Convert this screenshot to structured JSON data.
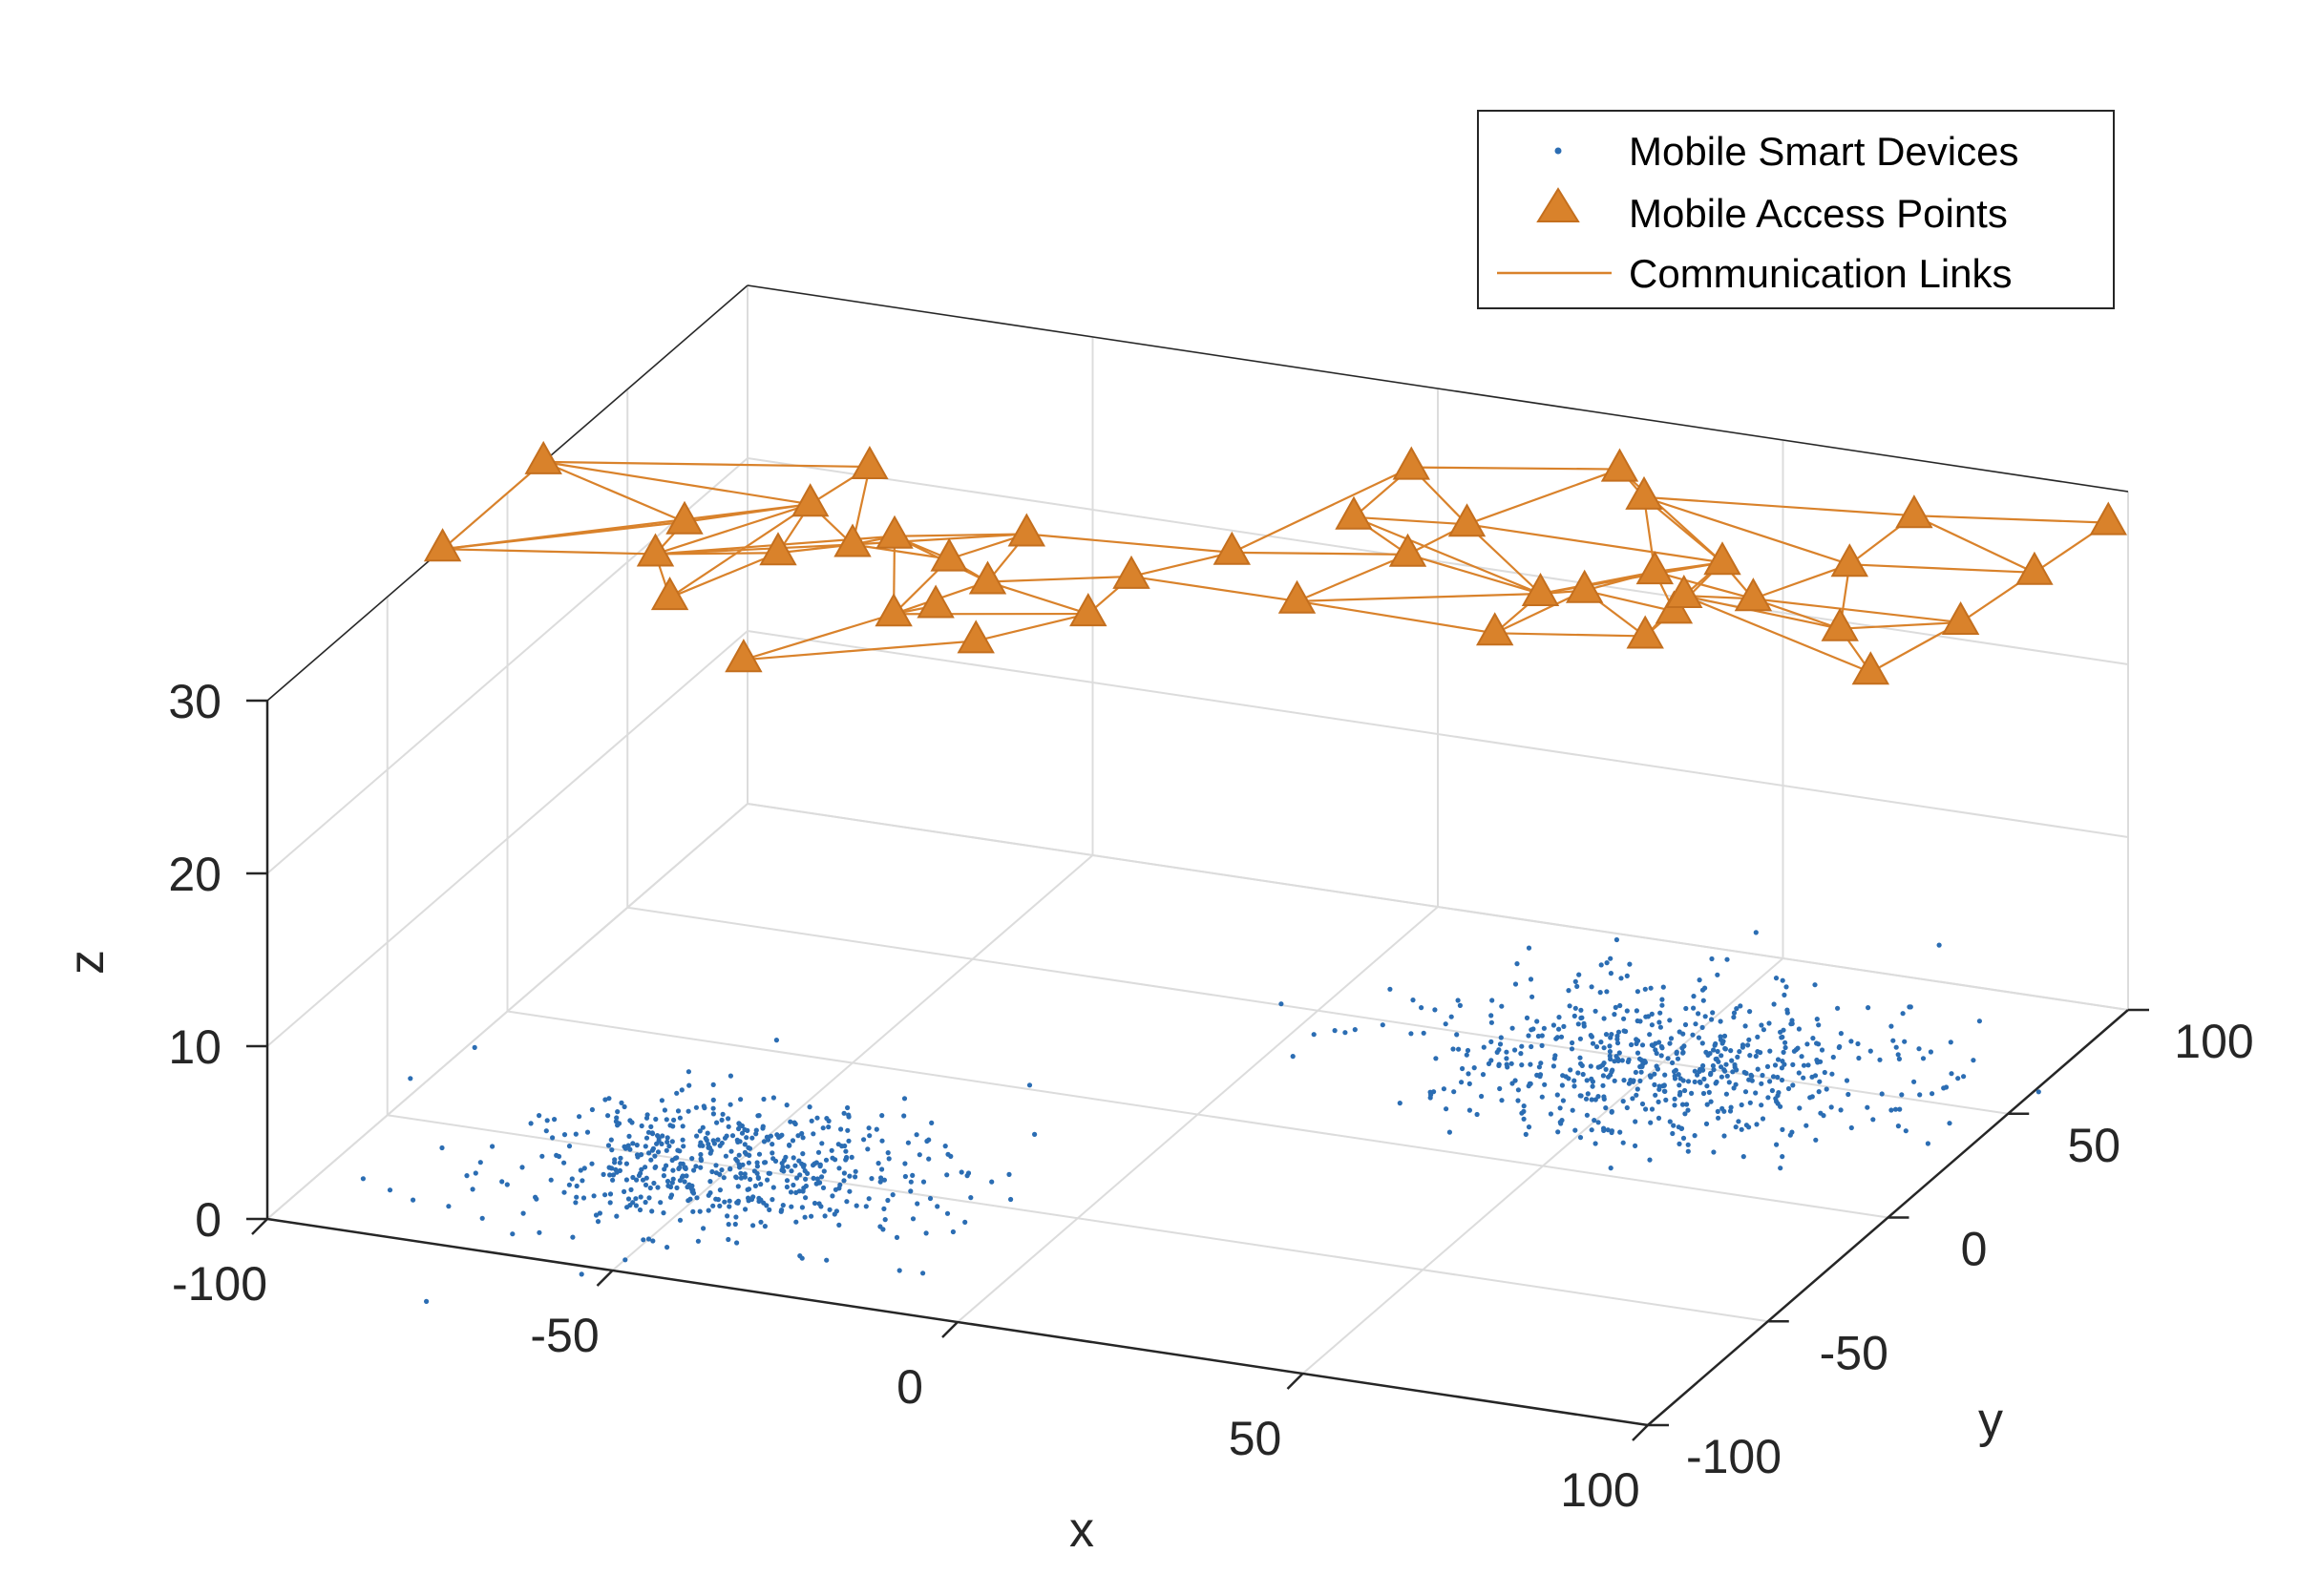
{
  "chart_data": {
    "type": "scatter3d",
    "xlabel": "x",
    "ylabel": "y",
    "zlabel": "z",
    "xlim": [
      -100,
      100
    ],
    "ylim": [
      -100,
      100
    ],
    "zlim": [
      0,
      30
    ],
    "xticks": [
      "-100",
      "-50",
      "0",
      "50",
      "100"
    ],
    "yticks": [
      "-100",
      "-50",
      "0",
      "50",
      "100"
    ],
    "zticks": [
      "0",
      "10",
      "20",
      "30"
    ],
    "grid": true,
    "legend": {
      "placement": "top-right",
      "entries": [
        "Mobile Smart Devices",
        "Mobile Access Points",
        "Communication Links"
      ]
    },
    "colors": {
      "devices": "#2b6db3",
      "access_points": "#d9822b",
      "links": "#d9822b",
      "grid": "#dcdcdc",
      "axis": "#262626"
    },
    "device_clusters": [
      {
        "center": [
          -50,
          -50,
          0
        ],
        "spread": 15,
        "count": 560
      },
      {
        "center": [
          50,
          50,
          0
        ],
        "spread": 17,
        "count": 620
      }
    ],
    "access_points": [
      [
        -100,
        -27,
        30
      ],
      [
        -74,
        -1,
        30
      ],
      [
        -59,
        33,
        30
      ],
      [
        -100,
        15,
        30
      ],
      [
        -61,
        14,
        30
      ],
      [
        -73,
        -16,
        30
      ],
      [
        -65,
        -33,
        30
      ],
      [
        -58,
        -8,
        30
      ],
      [
        -50,
        0,
        30
      ],
      [
        -46,
        6,
        30
      ],
      [
        -36,
        0,
        30
      ],
      [
        -30,
        15,
        30
      ],
      [
        -28,
        -7,
        30
      ],
      [
        -35,
        -26,
        30
      ],
      [
        -47,
        -54,
        30
      ],
      [
        -21,
        -32,
        30
      ],
      [
        -11,
        -14,
        30
      ],
      [
        -11,
        4,
        30
      ],
      [
        -2,
        20,
        30
      ],
      [
        20,
        30,
        30
      ],
      [
        13,
        4,
        30
      ],
      [
        -31,
        -20,
        30
      ],
      [
        8,
        66,
        30
      ],
      [
        23,
        46,
        30
      ],
      [
        42,
        22,
        30
      ],
      [
        34,
        78,
        30
      ],
      [
        60,
        46,
        30
      ],
      [
        41,
        68,
        30
      ],
      [
        53,
        38,
        30
      ],
      [
        47,
        26,
        30
      ],
      [
        42,
        3,
        30
      ],
      [
        61,
        11,
        30
      ],
      [
        61,
        23,
        30
      ],
      [
        69,
        33,
        30
      ],
      [
        60,
        30,
        30
      ],
      [
        77,
        77,
        30
      ],
      [
        76,
        53,
        30
      ],
      [
        84,
        26,
        30
      ],
      [
        98,
        36,
        30
      ],
      [
        94,
        10,
        30
      ],
      [
        100,
        61,
        30
      ],
      [
        102,
        86,
        30
      ],
      [
        8,
        42,
        30
      ]
    ],
    "links": [
      [
        0,
        1
      ],
      [
        0,
        4
      ],
      [
        0,
        3
      ],
      [
        0,
        5
      ],
      [
        3,
        4
      ],
      [
        3,
        2
      ],
      [
        3,
        1
      ],
      [
        2,
        4
      ],
      [
        2,
        8
      ],
      [
        1,
        5
      ],
      [
        1,
        4
      ],
      [
        4,
        8
      ],
      [
        4,
        5
      ],
      [
        4,
        7
      ],
      [
        4,
        6
      ],
      [
        5,
        8
      ],
      [
        5,
        6
      ],
      [
        5,
        7
      ],
      [
        5,
        9
      ],
      [
        7,
        8
      ],
      [
        7,
        6
      ],
      [
        8,
        9
      ],
      [
        8,
        10
      ],
      [
        8,
        11
      ],
      [
        9,
        10
      ],
      [
        9,
        11
      ],
      [
        9,
        12
      ],
      [
        9,
        13
      ],
      [
        10,
        11
      ],
      [
        10,
        12
      ],
      [
        10,
        13
      ],
      [
        11,
        12
      ],
      [
        11,
        18
      ],
      [
        12,
        13
      ],
      [
        12,
        16
      ],
      [
        12,
        17
      ],
      [
        13,
        21
      ],
      [
        13,
        16
      ],
      [
        13,
        14
      ],
      [
        14,
        15
      ],
      [
        15,
        16
      ],
      [
        16,
        17
      ],
      [
        17,
        18
      ],
      [
        17,
        20
      ],
      [
        18,
        19
      ],
      [
        18,
        22
      ],
      [
        19,
        20
      ],
      [
        19,
        23
      ],
      [
        19,
        24
      ],
      [
        20,
        24
      ],
      [
        20,
        30
      ],
      [
        22,
        23
      ],
      [
        22,
        25
      ],
      [
        22,
        42
      ],
      [
        23,
        25
      ],
      [
        23,
        24
      ],
      [
        23,
        26
      ],
      [
        23,
        42
      ],
      [
        24,
        29
      ],
      [
        24,
        30
      ],
      [
        24,
        28
      ],
      [
        24,
        26
      ],
      [
        25,
        27
      ],
      [
        25,
        26
      ],
      [
        26,
        27
      ],
      [
        26,
        28
      ],
      [
        26,
        32
      ],
      [
        26,
        34
      ],
      [
        26,
        33
      ],
      [
        27,
        35
      ],
      [
        27,
        36
      ],
      [
        27,
        28
      ],
      [
        28,
        29
      ],
      [
        28,
        32
      ],
      [
        28,
        33
      ],
      [
        29,
        30
      ],
      [
        29,
        31
      ],
      [
        29,
        32
      ],
      [
        30,
        31
      ],
      [
        31,
        32
      ],
      [
        31,
        34
      ],
      [
        32,
        34
      ],
      [
        33,
        34
      ],
      [
        33,
        36
      ],
      [
        33,
        37
      ],
      [
        33,
        38
      ],
      [
        34,
        37
      ],
      [
        34,
        39
      ],
      [
        35,
        36
      ],
      [
        35,
        40
      ],
      [
        35,
        41
      ],
      [
        36,
        40
      ],
      [
        36,
        37
      ],
      [
        37,
        38
      ],
      [
        37,
        39
      ],
      [
        38,
        40
      ],
      [
        39,
        38
      ],
      [
        40,
        41
      ],
      [
        42,
        19
      ],
      [
        42,
        24
      ]
    ]
  }
}
